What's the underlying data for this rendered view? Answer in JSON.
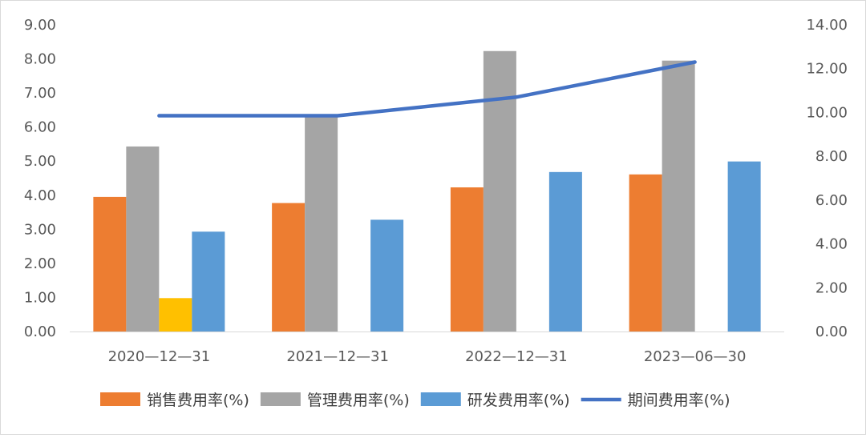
{
  "chart_data": {
    "type": "bar",
    "categories": [
      "2020—12—31",
      "2021—12—31",
      "2022—12—31",
      "2023—06—30"
    ],
    "series": [
      {
        "name": "销售费用率(%)",
        "kind": "bar",
        "axis": "left",
        "color": "#ED7D31",
        "values": [
          3.95,
          3.77,
          4.23,
          4.61
        ]
      },
      {
        "name": "管理费用率(%)",
        "kind": "bar",
        "axis": "left",
        "color": "#A5A5A5",
        "values": [
          5.43,
          6.31,
          8.23,
          7.95
        ]
      },
      {
        "name": "",
        "kind": "bar",
        "axis": "left",
        "color": "#FFC000",
        "values": [
          0.98,
          null,
          null,
          null
        ]
      },
      {
        "name": "研发费用率(%)",
        "kind": "bar",
        "axis": "left",
        "color": "#5B9BD5",
        "values": [
          2.93,
          3.28,
          4.68,
          4.99
        ]
      },
      {
        "name": "期间费用率(%)",
        "kind": "line",
        "axis": "right",
        "color": "#4472C4",
        "values": [
          9.85,
          9.85,
          10.7,
          12.3
        ]
      }
    ],
    "y_left": {
      "range": [
        0,
        9
      ],
      "ticks": [
        "0.00",
        "1.00",
        "2.00",
        "3.00",
        "4.00",
        "5.00",
        "6.00",
        "7.00",
        "8.00",
        "9.00"
      ]
    },
    "y_right": {
      "range": [
        0,
        14
      ],
      "ticks": [
        "0.00",
        "2.00",
        "4.00",
        "6.00",
        "8.00",
        "10.00",
        "12.00",
        "14.00"
      ]
    },
    "title": "",
    "xlabel": "",
    "ylabel": "",
    "grid": false,
    "legend": "bottom"
  }
}
